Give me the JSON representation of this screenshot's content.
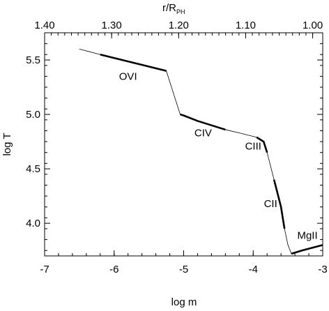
{
  "chart_data": {
    "type": "line",
    "title": "",
    "xlabel": "log m",
    "ylabel": "log T",
    "x2label_main": "r/R",
    "x2label_sub": "PH",
    "xlim": [
      -7,
      -3
    ],
    "ylim": [
      3.7,
      5.75
    ],
    "x2lim": [
      1.4,
      0.985
    ],
    "xticks": [
      -7,
      -6,
      -5,
      -4,
      -3
    ],
    "xtick_labels": [
      "-7",
      "-6",
      "-5",
      "-4",
      "-3"
    ],
    "yticks": [
      4.0,
      4.5,
      5.0,
      5.5
    ],
    "ytick_labels": [
      "4.0",
      "4.5",
      "5.0",
      "5.5"
    ],
    "x2ticks": [
      1.4,
      1.3,
      1.2,
      1.1,
      1.0
    ],
    "x2tick_labels": [
      "1.40",
      "1.30",
      "1.20",
      "1.10",
      "1.00"
    ],
    "grid": false,
    "legend": "none",
    "series": [
      {
        "x": [
          -6.5,
          -6.2,
          -5.25,
          -5.1,
          -5.05,
          -5.0,
          -4.8,
          -4.4,
          -4.2,
          -3.95,
          -3.85,
          -3.8,
          -3.7,
          -3.6,
          -3.55,
          -3.5,
          -3.45,
          -3.3,
          -3.0
        ],
        "y": [
          5.6,
          5.55,
          5.4,
          5.1,
          5.0,
          4.99,
          4.94,
          4.86,
          4.83,
          4.79,
          4.75,
          4.65,
          4.4,
          4.15,
          3.95,
          3.8,
          3.72,
          3.75,
          3.8
        ]
      }
    ],
    "highlight_segments": [
      {
        "label": "OVI",
        "x": [
          -6.2,
          -5.25
        ]
      },
      {
        "label": "CIV",
        "x": [
          -5.05,
          -4.4
        ]
      },
      {
        "label": "CIII",
        "x": [
          -3.95,
          -3.8
        ]
      },
      {
        "label": "CII",
        "x": [
          -3.7,
          -3.55
        ]
      },
      {
        "label": "MgII",
        "x": [
          -3.45,
          -3.0
        ]
      }
    ],
    "annotations": [
      {
        "text": "OVI",
        "x": -5.8,
        "y": 5.35
      },
      {
        "text": "CIV",
        "x": -4.72,
        "y": 4.83
      },
      {
        "text": "CIII",
        "x": -4.0,
        "y": 4.71
      },
      {
        "text": "CII",
        "x": -3.75,
        "y": 4.18
      },
      {
        "text": "MgII",
        "x": -3.22,
        "y": 3.89
      }
    ]
  }
}
